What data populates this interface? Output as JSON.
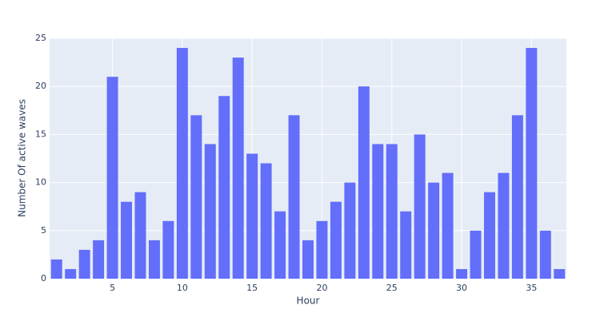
{
  "chart_data": {
    "type": "bar",
    "x": [
      1,
      2,
      3,
      4,
      5,
      6,
      7,
      8,
      9,
      10,
      11,
      12,
      13,
      14,
      15,
      16,
      17,
      18,
      19,
      20,
      21,
      22,
      23,
      24,
      25,
      26,
      27,
      28,
      29,
      30,
      31,
      32,
      33,
      34,
      35,
      36,
      37
    ],
    "values": [
      2,
      1,
      3,
      4,
      21,
      8,
      9,
      4,
      6,
      24,
      17,
      14,
      19,
      23,
      13,
      12,
      7,
      17,
      4,
      6,
      8,
      10,
      20,
      14,
      14,
      7,
      15,
      10,
      11,
      1,
      5,
      9,
      11,
      17,
      24,
      5,
      1
    ],
    "color": "#636efa",
    "xlabel": "Hour",
    "ylabel": "Number Of active waves",
    "xlim": [
      0.5,
      37.5
    ],
    "xticks": [
      5,
      10,
      15,
      20,
      25,
      30,
      35
    ],
    "ylim": [
      0,
      25
    ],
    "yticks": [
      0,
      5,
      10,
      15,
      20,
      25
    ],
    "grid": true
  }
}
